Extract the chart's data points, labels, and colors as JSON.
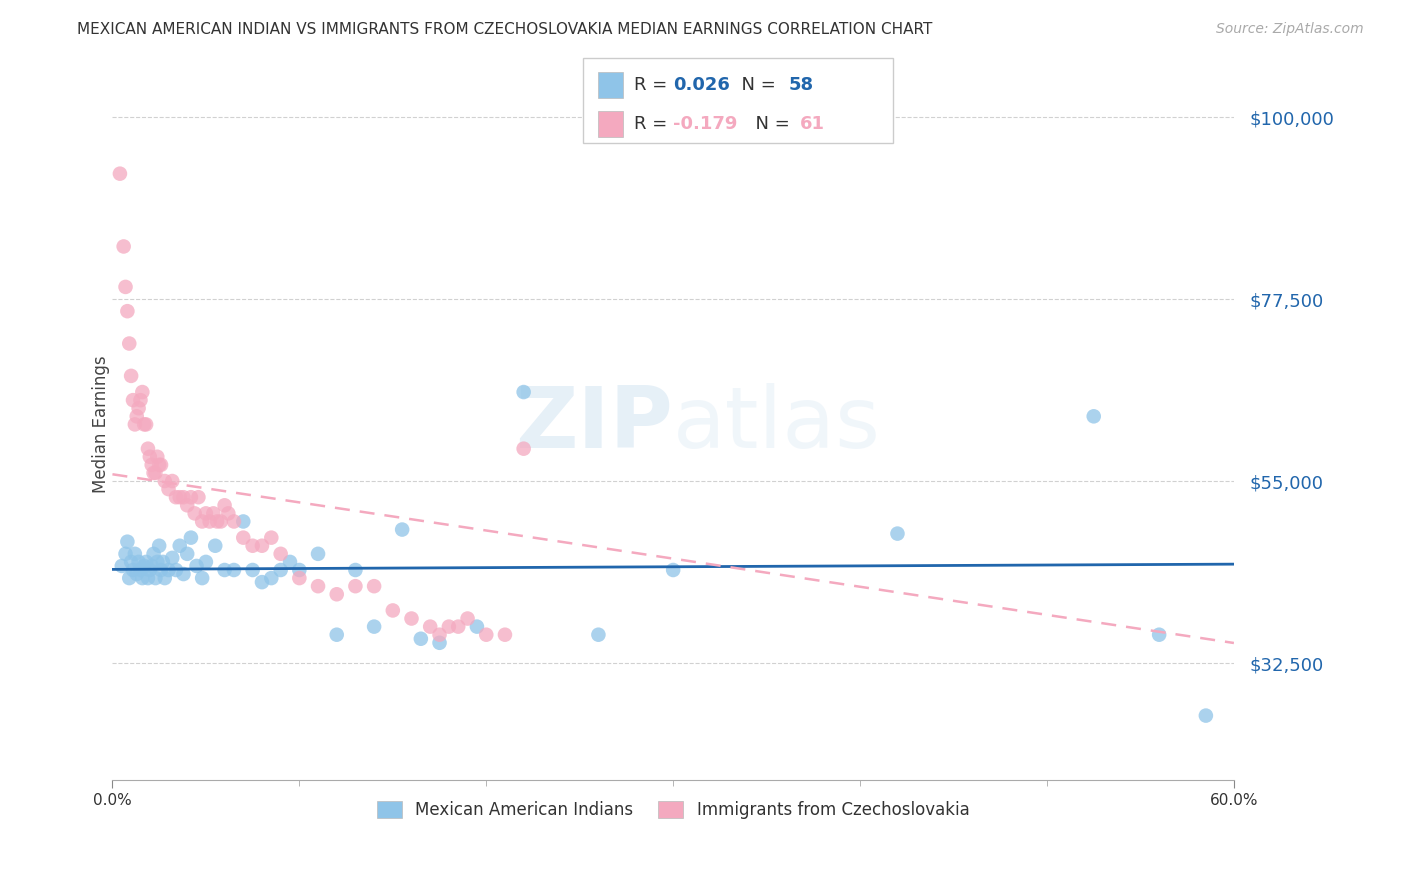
{
  "title": "MEXICAN AMERICAN INDIAN VS IMMIGRANTS FROM CZECHOSLOVAKIA MEDIAN EARNINGS CORRELATION CHART",
  "source": "Source: ZipAtlas.com",
  "ylabel": "Median Earnings",
  "legend1_label": "Mexican American Indians",
  "legend2_label": "Immigrants from Czechoslovakia",
  "r1": 0.026,
  "n1": 58,
  "r2": -0.179,
  "n2": 61,
  "blue_color": "#8fc4e8",
  "pink_color": "#f4a9bf",
  "blue_line_color": "#2166ac",
  "pink_line_color": "#f4a9bf",
  "axis_label_color": "#2166ac",
  "watermark": "ZIPatlas",
  "xmin": 0.0,
  "xmax": 0.6,
  "ymin": 18000,
  "ymax": 106000,
  "ytick_positions": [
    32500,
    55000,
    77500,
    100000
  ],
  "ytick_labels": [
    "$32,500",
    "$55,000",
    "$77,500",
    "$100,000"
  ],
  "blue_scatter_x": [
    0.005,
    0.007,
    0.008,
    0.009,
    0.01,
    0.011,
    0.012,
    0.013,
    0.014,
    0.015,
    0.016,
    0.017,
    0.018,
    0.019,
    0.02,
    0.021,
    0.022,
    0.023,
    0.024,
    0.025,
    0.026,
    0.027,
    0.028,
    0.03,
    0.032,
    0.034,
    0.036,
    0.038,
    0.04,
    0.042,
    0.045,
    0.048,
    0.05,
    0.055,
    0.06,
    0.065,
    0.07,
    0.075,
    0.08,
    0.085,
    0.09,
    0.095,
    0.1,
    0.11,
    0.12,
    0.13,
    0.14,
    0.155,
    0.165,
    0.175,
    0.195,
    0.22,
    0.26,
    0.3,
    0.42,
    0.525,
    0.56,
    0.585
  ],
  "blue_scatter_y": [
    44500,
    46000,
    47500,
    43000,
    45000,
    44000,
    46000,
    43500,
    45000,
    44000,
    43000,
    44500,
    45000,
    43000,
    44000,
    44500,
    46000,
    43000,
    45000,
    47000,
    44000,
    45000,
    43000,
    44000,
    45500,
    44000,
    47000,
    43500,
    46000,
    48000,
    44500,
    43000,
    45000,
    47000,
    44000,
    44000,
    50000,
    44000,
    42500,
    43000,
    44000,
    45000,
    44000,
    46000,
    36000,
    44000,
    37000,
    49000,
    35500,
    35000,
    37000,
    66000,
    36000,
    44000,
    48500,
    63000,
    36000,
    26000
  ],
  "pink_scatter_x": [
    0.004,
    0.006,
    0.007,
    0.008,
    0.009,
    0.01,
    0.011,
    0.012,
    0.013,
    0.014,
    0.015,
    0.016,
    0.017,
    0.018,
    0.019,
    0.02,
    0.021,
    0.022,
    0.023,
    0.024,
    0.025,
    0.026,
    0.028,
    0.03,
    0.032,
    0.034,
    0.036,
    0.038,
    0.04,
    0.042,
    0.044,
    0.046,
    0.048,
    0.05,
    0.052,
    0.054,
    0.056,
    0.058,
    0.06,
    0.062,
    0.065,
    0.07,
    0.075,
    0.08,
    0.085,
    0.09,
    0.1,
    0.11,
    0.12,
    0.13,
    0.14,
    0.15,
    0.16,
    0.17,
    0.175,
    0.18,
    0.185,
    0.19,
    0.2,
    0.21,
    0.22
  ],
  "pink_scatter_y": [
    93000,
    84000,
    79000,
    76000,
    72000,
    68000,
    65000,
    62000,
    63000,
    64000,
    65000,
    66000,
    62000,
    62000,
    59000,
    58000,
    57000,
    56000,
    56000,
    58000,
    57000,
    57000,
    55000,
    54000,
    55000,
    53000,
    53000,
    53000,
    52000,
    53000,
    51000,
    53000,
    50000,
    51000,
    50000,
    51000,
    50000,
    50000,
    52000,
    51000,
    50000,
    48000,
    47000,
    47000,
    48000,
    46000,
    43000,
    42000,
    41000,
    42000,
    42000,
    39000,
    38000,
    37000,
    36000,
    37000,
    37000,
    38000,
    36000,
    36000,
    59000
  ]
}
